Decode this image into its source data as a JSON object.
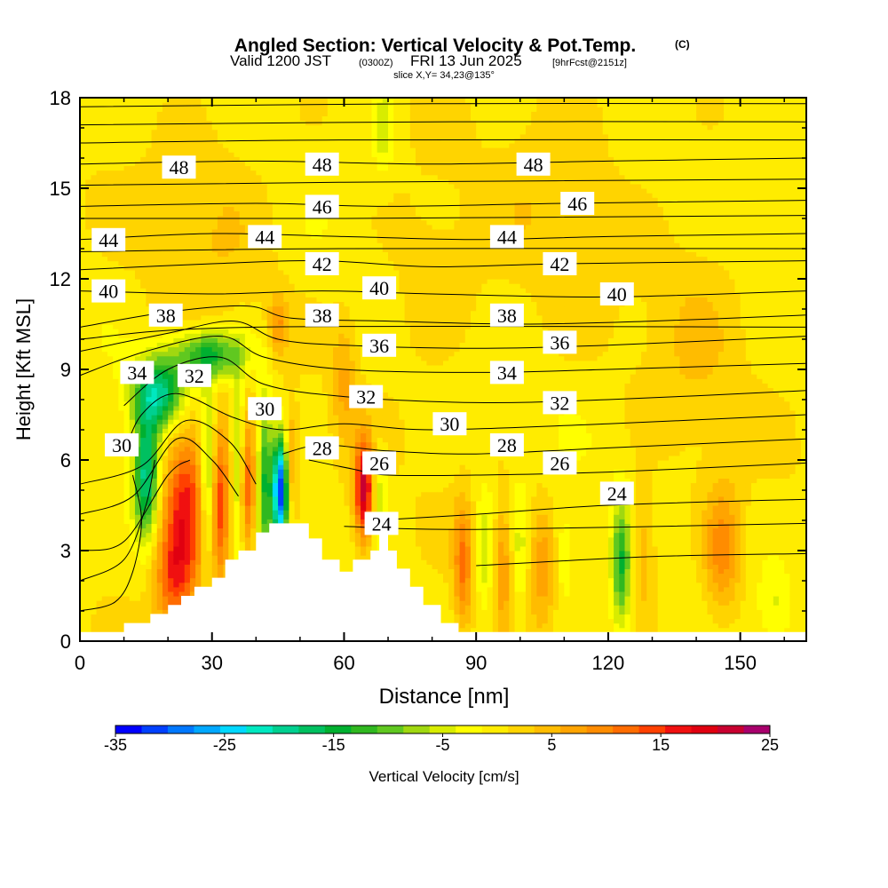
{
  "chart_data": {
    "type": "heatmap",
    "title": "Angled Section: Vertical Velocity & Pot.Temp.",
    "title_mark": "(C)",
    "subtitle": {
      "valid_label": "Valid 1200 JST",
      "utc": "(0300Z)",
      "date": "FRI 13 Jun 2025",
      "forecast": "[9hrFcst@2151z]"
    },
    "slice_label": "slice X,Y= 34,23@135°",
    "xlabel": "Distance [nm]",
    "ylabel": "Height [Kft MSL]",
    "xlim": [
      0,
      165
    ],
    "ylim": [
      0,
      18
    ],
    "x_ticks": [
      "0",
      "30",
      "60",
      "90",
      "120",
      "150"
    ],
    "y_ticks": [
      "0",
      "3",
      "6",
      "9",
      "12",
      "15",
      "18"
    ],
    "terrain": [
      [
        0,
        0.3
      ],
      [
        10,
        0.3
      ],
      [
        10,
        0.6
      ],
      [
        16,
        0.6
      ],
      [
        16,
        0.9
      ],
      [
        20,
        0.9
      ],
      [
        20,
        1.2
      ],
      [
        23,
        1.2
      ],
      [
        23,
        1.5
      ],
      [
        26,
        1.5
      ],
      [
        26,
        1.8
      ],
      [
        30,
        1.8
      ],
      [
        30,
        2.1
      ],
      [
        33,
        2.1
      ],
      [
        33,
        2.7
      ],
      [
        36,
        2.7
      ],
      [
        36,
        3.0
      ],
      [
        40,
        3.0
      ],
      [
        40,
        3.6
      ],
      [
        43,
        3.6
      ],
      [
        43,
        3.9
      ],
      [
        52,
        3.9
      ],
      [
        52,
        3.4
      ],
      [
        55,
        3.4
      ],
      [
        55,
        2.7
      ],
      [
        59,
        2.7
      ],
      [
        59,
        2.3
      ],
      [
        62,
        2.3
      ],
      [
        62,
        2.7
      ],
      [
        66,
        2.7
      ],
      [
        66,
        3.0
      ],
      [
        68,
        3.0
      ],
      [
        68,
        3.9
      ],
      [
        70,
        3.9
      ],
      [
        70,
        3.0
      ],
      [
        72,
        3.0
      ],
      [
        72,
        2.4
      ],
      [
        75,
        2.4
      ],
      [
        75,
        1.8
      ],
      [
        78,
        1.8
      ],
      [
        78,
        1.2
      ],
      [
        82,
        1.2
      ],
      [
        82,
        0.6
      ],
      [
        86,
        0.6
      ],
      [
        86,
        0.3
      ],
      [
        165,
        0.3
      ]
    ],
    "wind_features": [
      {
        "x": 24,
        "z": 4.5,
        "sx": 3.5,
        "sz": 2.0,
        "w": 17
      },
      {
        "x": 21,
        "z": 2.0,
        "sx": 3.0,
        "sz": 1.2,
        "w": 10
      },
      {
        "x": 15,
        "z": 5.5,
        "sx": 2.0,
        "sz": 1.5,
        "w": -20
      },
      {
        "x": 18,
        "z": 8.2,
        "sx": 4.0,
        "sz": 0.8,
        "w": -20
      },
      {
        "x": 29,
        "z": 9.5,
        "sx": 6.0,
        "sz": 0.6,
        "w": -16
      },
      {
        "x": 29,
        "z": 5.5,
        "sx": 1.2,
        "sz": 2.0,
        "w": -12
      },
      {
        "x": 32,
        "z": 4.5,
        "sx": 1.5,
        "sz": 1.8,
        "w": 15
      },
      {
        "x": 36,
        "z": 6.0,
        "sx": 1.0,
        "sz": 2.0,
        "w": -10
      },
      {
        "x": 38,
        "z": 5.0,
        "sx": 1.5,
        "sz": 1.5,
        "w": 14
      },
      {
        "x": 42,
        "z": 5.5,
        "sx": 1.2,
        "sz": 2.0,
        "w": -14
      },
      {
        "x": 45.5,
        "z": 5.0,
        "sx": 1.2,
        "sz": 1.2,
        "w": -34
      },
      {
        "x": 48,
        "z": 6.0,
        "sx": 1.0,
        "sz": 1.2,
        "w": 8
      },
      {
        "x": 64.5,
        "z": 5.0,
        "sx": 1.5,
        "sz": 1.2,
        "w": 22
      },
      {
        "x": 68,
        "z": 5.0,
        "sx": 1.2,
        "sz": 1.0,
        "w": -6
      },
      {
        "x": 87,
        "z": 2.5,
        "sx": 1.5,
        "sz": 1.5,
        "w": 11
      },
      {
        "x": 92,
        "z": 3.0,
        "sx": 1.5,
        "sz": 1.5,
        "w": -6
      },
      {
        "x": 96,
        "z": 2.5,
        "sx": 1.5,
        "sz": 1.5,
        "w": 8
      },
      {
        "x": 100,
        "z": 3.0,
        "sx": 1.2,
        "sz": 1.5,
        "w": -5
      },
      {
        "x": 105,
        "z": 2.5,
        "sx": 2.0,
        "sz": 1.5,
        "w": 7
      },
      {
        "x": 110,
        "z": 2.8,
        "sx": 1.5,
        "sz": 1.2,
        "w": -4
      },
      {
        "x": 123,
        "z": 2.5,
        "sx": 1.5,
        "sz": 1.5,
        "w": -14
      },
      {
        "x": 128,
        "z": 3.0,
        "sx": 2.0,
        "sz": 1.5,
        "w": 6
      },
      {
        "x": 146,
        "z": 3.0,
        "sx": 3.0,
        "sz": 1.5,
        "w": 10
      },
      {
        "x": 158,
        "z": 1.2,
        "sx": 2.5,
        "sz": 0.8,
        "w": -4
      },
      {
        "x": 45,
        "z": 10.5,
        "sx": 1.5,
        "sz": 0.7,
        "w": 8
      },
      {
        "x": 60,
        "z": 8.5,
        "sx": 2.0,
        "sz": 1.5,
        "w": 6
      },
      {
        "x": 69,
        "z": 17.0,
        "sx": 1.5,
        "sz": 1.0,
        "w": -6
      },
      {
        "x": 80,
        "z": 12.0,
        "sx": 8.0,
        "sz": 2.0,
        "w": 3
      },
      {
        "x": 30,
        "z": 14.0,
        "sx": 10.0,
        "sz": 3.0,
        "w": 3
      },
      {
        "x": 110,
        "z": 15.0,
        "sx": 10.0,
        "sz": 3.0,
        "w": 3
      },
      {
        "x": 140,
        "z": 10.0,
        "sx": 8.0,
        "sz": 3.0,
        "w": 3
      }
    ],
    "theta_contours": [
      {
        "value": "24",
        "points": [
          [
            67,
            4.0
          ],
          [
            90,
            4.2
          ],
          [
            120,
            4.5
          ],
          [
            165,
            4.7
          ]
        ]
      },
      {
        "value": "26",
        "points": [
          [
            52,
            6.0
          ],
          [
            62,
            5.7
          ],
          [
            70,
            5.5
          ],
          [
            90,
            5.5
          ],
          [
            120,
            5.6
          ],
          [
            165,
            5.9
          ]
        ]
      },
      {
        "value": "28",
        "points": [
          [
            46,
            6.2
          ],
          [
            55,
            6.5
          ],
          [
            70,
            6.3
          ],
          [
            90,
            6.2
          ],
          [
            120,
            6.4
          ],
          [
            165,
            6.7
          ]
        ]
      },
      {
        "value": "30",
        "points": [
          [
            10,
            6.2
          ],
          [
            14,
            7.5
          ],
          [
            22,
            8.2
          ],
          [
            35,
            7.4
          ],
          [
            46,
            7.0
          ],
          [
            60,
            7.2
          ],
          [
            80,
            7.0
          ],
          [
            120,
            7.2
          ],
          [
            165,
            7.5
          ]
        ]
      },
      {
        "value": "32",
        "points": [
          [
            10,
            7.8
          ],
          [
            20,
            9.0
          ],
          [
            32,
            9.4
          ],
          [
            42,
            8.5
          ],
          [
            60,
            8.1
          ],
          [
            90,
            7.9
          ],
          [
            120,
            8.0
          ],
          [
            165,
            8.3
          ]
        ]
      },
      {
        "value": "34",
        "points": [
          [
            0,
            8.8
          ],
          [
            15,
            9.6
          ],
          [
            32,
            10.1
          ],
          [
            42,
            9.4
          ],
          [
            60,
            9.0
          ],
          [
            90,
            8.9
          ],
          [
            120,
            9.0
          ],
          [
            165,
            9.2
          ]
        ]
      },
      {
        "value": "36",
        "points": [
          [
            0,
            9.6
          ],
          [
            20,
            10.2
          ],
          [
            35,
            10.6
          ],
          [
            45,
            10.0
          ],
          [
            60,
            9.8
          ],
          [
            90,
            9.7
          ],
          [
            120,
            9.8
          ],
          [
            165,
            10.1
          ]
        ]
      },
      {
        "value": "38",
        "points": [
          [
            0,
            10.4
          ],
          [
            20,
            10.9
          ],
          [
            38,
            11.1
          ],
          [
            48,
            10.7
          ],
          [
            70,
            10.6
          ],
          [
            100,
            10.5
          ],
          [
            130,
            10.6
          ],
          [
            165,
            10.8
          ]
        ]
      },
      {
        "value": "40",
        "points": [
          [
            0,
            11.6
          ],
          [
            30,
            11.5
          ],
          [
            55,
            11.6
          ],
          [
            80,
            11.5
          ],
          [
            120,
            11.4
          ],
          [
            165,
            11.6
          ]
        ]
      },
      {
        "value": "42",
        "points": [
          [
            0,
            12.3
          ],
          [
            30,
            12.5
          ],
          [
            55,
            12.6
          ],
          [
            80,
            12.4
          ],
          [
            110,
            12.5
          ],
          [
            165,
            12.6
          ]
        ]
      },
      {
        "value": "44",
        "points": [
          [
            0,
            13.3
          ],
          [
            30,
            13.5
          ],
          [
            60,
            13.4
          ],
          [
            90,
            13.3
          ],
          [
            120,
            13.4
          ],
          [
            165,
            13.5
          ]
        ]
      },
      {
        "value": "46",
        "points": [
          [
            0,
            14.4
          ],
          [
            40,
            14.5
          ],
          [
            70,
            14.4
          ],
          [
            110,
            14.5
          ],
          [
            165,
            14.6
          ]
        ]
      },
      {
        "value": "48",
        "points": [
          [
            0,
            15.8
          ],
          [
            40,
            15.9
          ],
          [
            80,
            15.8
          ],
          [
            120,
            15.9
          ],
          [
            165,
            16.0
          ]
        ]
      }
    ],
    "extra_theta_lines": [
      [
        [
          0,
          1.0
        ],
        [
          8,
          1.3
        ],
        [
          12,
          2.3
        ],
        [
          14,
          4.0
        ],
        [
          12,
          5.5
        ]
      ],
      [
        [
          0,
          2.0
        ],
        [
          10,
          2.7
        ],
        [
          15,
          4.5
        ],
        [
          17,
          6.0
        ]
      ],
      [
        [
          0,
          3.0
        ],
        [
          10,
          3.3
        ],
        [
          20,
          5.5
        ],
        [
          25,
          6.0
        ]
      ],
      [
        [
          0,
          4.2
        ],
        [
          12,
          4.8
        ],
        [
          22,
          6.7
        ],
        [
          30,
          6.0
        ],
        [
          36,
          4.8
        ]
      ],
      [
        [
          0,
          5.2
        ],
        [
          14,
          5.8
        ],
        [
          24,
          7.3
        ],
        [
          34,
          6.6
        ],
        [
          40,
          5.2
        ]
      ],
      [
        [
          60,
          3.8
        ],
        [
          90,
          3.7
        ],
        [
          165,
          3.9
        ]
      ],
      [
        [
          90,
          2.5
        ],
        [
          130,
          2.8
        ],
        [
          165,
          2.9
        ]
      ],
      [
        [
          0,
          14.0
        ],
        [
          60,
          14.0
        ],
        [
          165,
          14.1
        ]
      ],
      [
        [
          0,
          15.1
        ],
        [
          60,
          15.2
        ],
        [
          165,
          15.3
        ]
      ],
      [
        [
          0,
          16.5
        ],
        [
          60,
          16.6
        ],
        [
          165,
          16.6
        ]
      ],
      [
        [
          0,
          17.1
        ],
        [
          80,
          17.2
        ],
        [
          165,
          17.2
        ]
      ],
      [
        [
          0,
          17.7
        ],
        [
          80,
          17.8
        ],
        [
          165,
          17.8
        ]
      ],
      [
        [
          0,
          10.0
        ],
        [
          40,
          10.4
        ],
        [
          165,
          10.4
        ]
      ],
      [
        [
          0,
          12.9
        ],
        [
          60,
          13.0
        ],
        [
          165,
          13.0
        ]
      ]
    ],
    "theta_labels": [
      {
        "text": "48",
        "x": 22.5,
        "z": 15.7
      },
      {
        "text": "48",
        "x": 55.0,
        "z": 15.8
      },
      {
        "text": "48",
        "x": 103.0,
        "z": 15.8
      },
      {
        "text": "46",
        "x": 55.0,
        "z": 14.4
      },
      {
        "text": "46",
        "x": 113.0,
        "z": 14.5
      },
      {
        "text": "44",
        "x": 6.5,
        "z": 13.3
      },
      {
        "text": "44",
        "x": 42.0,
        "z": 13.4
      },
      {
        "text": "44",
        "x": 97.0,
        "z": 13.4
      },
      {
        "text": "42",
        "x": 55.0,
        "z": 12.5
      },
      {
        "text": "42",
        "x": 109.0,
        "z": 12.5
      },
      {
        "text": "40",
        "x": 6.5,
        "z": 11.6
      },
      {
        "text": "40",
        "x": 68.0,
        "z": 11.7
      },
      {
        "text": "40",
        "x": 122.0,
        "z": 11.5
      },
      {
        "text": "38",
        "x": 19.5,
        "z": 10.8
      },
      {
        "text": "38",
        "x": 55.0,
        "z": 10.8
      },
      {
        "text": "38",
        "x": 97.0,
        "z": 10.8
      },
      {
        "text": "36",
        "x": 68.0,
        "z": 9.8
      },
      {
        "text": "36",
        "x": 109.0,
        "z": 9.9
      },
      {
        "text": "34",
        "x": 13.0,
        "z": 8.9
      },
      {
        "text": "34",
        "x": 97.0,
        "z": 8.9
      },
      {
        "text": "32",
        "x": 26.0,
        "z": 8.8
      },
      {
        "text": "32",
        "x": 65.0,
        "z": 8.1
      },
      {
        "text": "32",
        "x": 109.0,
        "z": 7.9
      },
      {
        "text": "30",
        "x": 42.0,
        "z": 7.7
      },
      {
        "text": "30",
        "x": 84.0,
        "z": 7.2
      },
      {
        "text": "30",
        "x": 9.5,
        "z": 6.5
      },
      {
        "text": "28",
        "x": 55.0,
        "z": 6.4
      },
      {
        "text": "28",
        "x": 97.0,
        "z": 6.5
      },
      {
        "text": "26",
        "x": 68.0,
        "z": 5.9
      },
      {
        "text": "26",
        "x": 109.0,
        "z": 5.9
      },
      {
        "text": "24",
        "x": 122.0,
        "z": 4.9
      },
      {
        "text": "24",
        "x": 68.5,
        "z": 3.9
      }
    ],
    "colorbar": {
      "label": "Vertical Velocity [cm/s]",
      "min": -35,
      "max": 25,
      "step": 2.5,
      "tick_labels": [
        "-35",
        "-25",
        "-15",
        "-5",
        "5",
        "15",
        "25"
      ],
      "colors": [
        "#0000ff",
        "#0040ff",
        "#0078ff",
        "#00a8ff",
        "#00d8ff",
        "#00e8c0",
        "#00d090",
        "#00c060",
        "#00b030",
        "#30b820",
        "#60c820",
        "#a0d810",
        "#d8ec00",
        "#ffff00",
        "#ffec00",
        "#ffd400",
        "#ffbc00",
        "#ffa400",
        "#ff8c00",
        "#ff6c00",
        "#ff4000",
        "#f01010",
        "#e00010",
        "#c80030",
        "#a8006c",
        "#7800a0"
      ]
    }
  }
}
